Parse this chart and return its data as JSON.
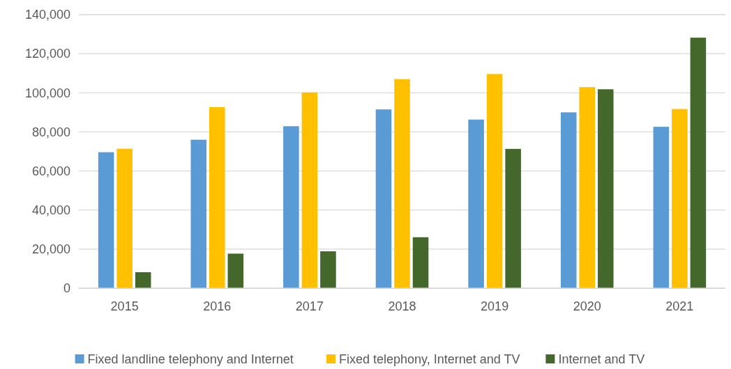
{
  "chart_data": {
    "type": "bar",
    "categories": [
      "2015",
      "2016",
      "2017",
      "2018",
      "2019",
      "2020",
      "2021"
    ],
    "series": [
      {
        "name": "Fixed landline telephony and Internet",
        "color": "#5b9bd5",
        "values": [
          69600,
          76000,
          82900,
          91500,
          86300,
          90000,
          82600
        ]
      },
      {
        "name": "Fixed telephony, Internet and TV",
        "color": "#ffc000",
        "values": [
          71400,
          92700,
          100200,
          107000,
          109600,
          102900,
          91700
        ]
      },
      {
        "name": "Internet and TV",
        "color": "#44682c",
        "values": [
          8200,
          17700,
          18900,
          26100,
          71300,
          101800,
          128200
        ]
      }
    ],
    "ylim": [
      0,
      140000
    ],
    "yticks": [
      {
        "value": 0,
        "label": "0"
      },
      {
        "value": 20000,
        "label": "20,000"
      },
      {
        "value": 40000,
        "label": "40,000"
      },
      {
        "value": 60000,
        "label": "60,000"
      },
      {
        "value": 80000,
        "label": "80,000"
      },
      {
        "value": 100000,
        "label": "100,000"
      },
      {
        "value": 120000,
        "label": "120,000"
      },
      {
        "value": 140000,
        "label": "140,000"
      }
    ],
    "grid": "y",
    "legend": "bottom"
  }
}
